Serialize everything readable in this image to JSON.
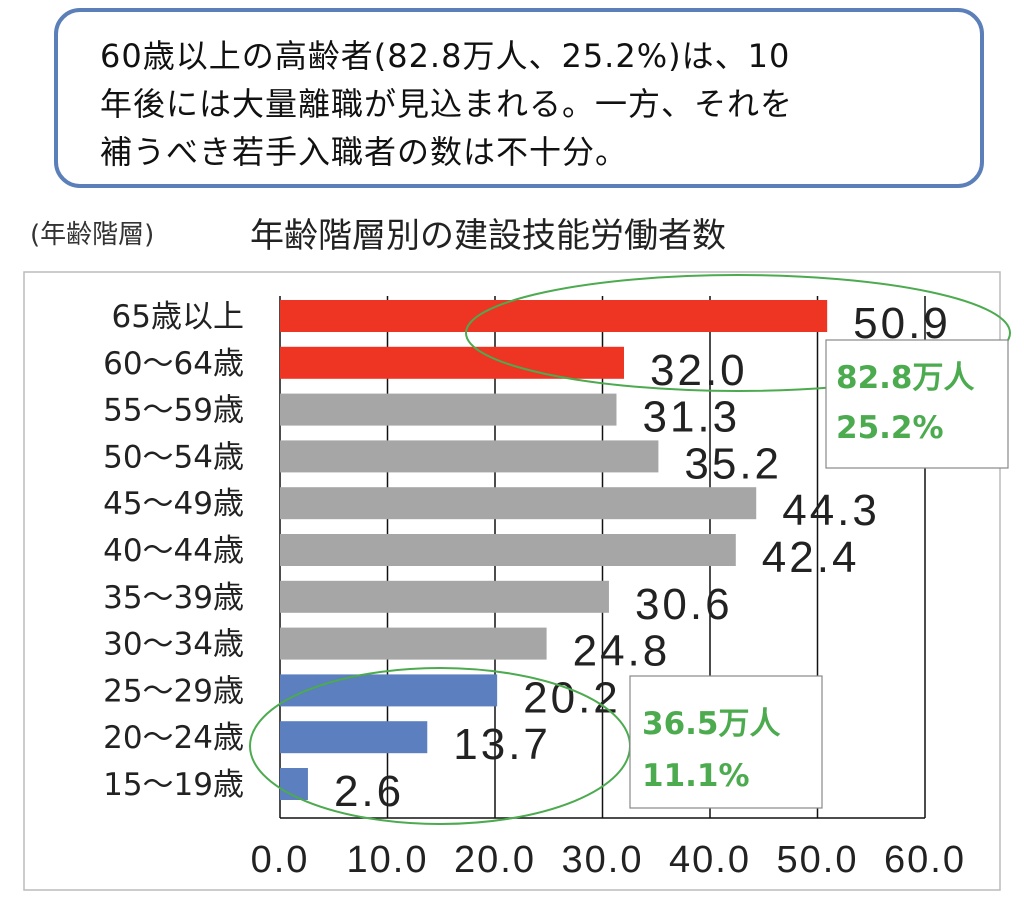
{
  "callout": {
    "lines": [
      "60歳以上の高齢者(82.8万人、25.2%)は、10",
      "年後には大量離職が見込まれる。一方、それを",
      "補うべき若手入職者の数は不十分。"
    ]
  },
  "chart_data": {
    "type": "bar",
    "orientation": "horizontal",
    "title": "年齢階層別の建設技能労働者数",
    "ylabel": "(年齢階層)",
    "xlabel": "",
    "categories": [
      "65歳以上",
      "60～64歳",
      "55～59歳",
      "50～54歳",
      "45～49歳",
      "40～44歳",
      "35～39歳",
      "30～34歳",
      "25～29歳",
      "20～24歳",
      "15～19歳"
    ],
    "values": [
      50.9,
      32.0,
      31.3,
      35.2,
      44.3,
      42.4,
      30.6,
      24.8,
      20.2,
      13.7,
      2.6
    ],
    "value_labels": [
      "50.9",
      "32.0",
      "31.3",
      "35.2",
      "44.3",
      "42.4",
      "30.6",
      "24.8",
      "20.2",
      "13.7",
      "2.6"
    ],
    "bar_colors": [
      "#ee3524",
      "#ee3524",
      "#a6a6a6",
      "#a6a6a6",
      "#a6a6a6",
      "#a6a6a6",
      "#a6a6a6",
      "#a6a6a6",
      "#5b7fbf",
      "#5b7fbf",
      "#5b7fbf"
    ],
    "xlim": [
      0,
      60
    ],
    "xticks": [
      0,
      10,
      20,
      30,
      40,
      50,
      60
    ],
    "xtick_labels": [
      "0.0",
      "10.0",
      "20.0",
      "30.0",
      "40.0",
      "50.0",
      "60.0"
    ],
    "grid": "vertical",
    "annotations": [
      {
        "text": [
          "82.8万人",
          "25.2%"
        ],
        "group": [
          "65歳以上",
          "60～64歳"
        ],
        "color": "#4caa4f"
      },
      {
        "text": [
          "36.5万人",
          "11.1%"
        ],
        "group": [
          "25～29歳",
          "20～24歳",
          "15～19歳"
        ],
        "color": "#4caa4f"
      }
    ]
  }
}
